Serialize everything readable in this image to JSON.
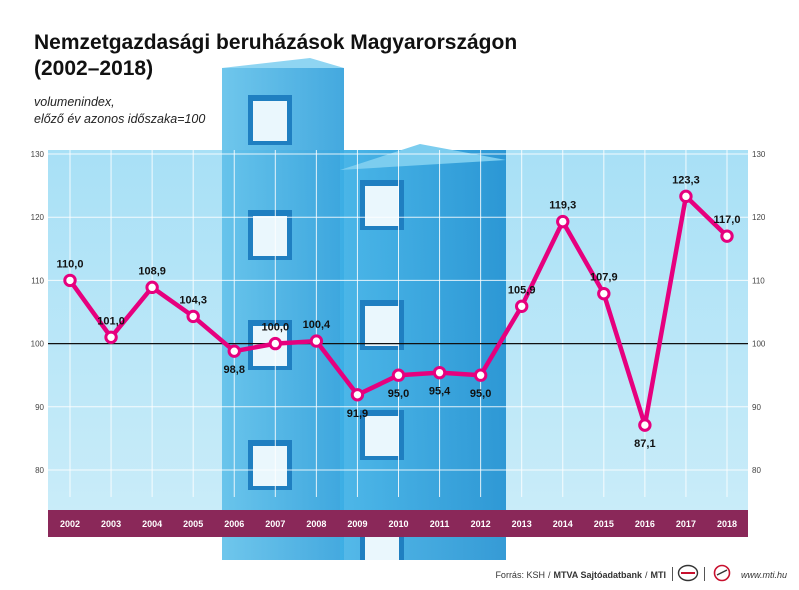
{
  "title_line1": "Nemzetgazdasági beruházások Magyarországon",
  "title_line2": "(2002–2018)",
  "subtitle_line1": "volumenindex,",
  "subtitle_line2": "előző év azonos időszaka=100",
  "footer": {
    "source_prefix": "Forrás: KSH",
    "source_agency": "MTVA Sajtóadatbank",
    "source_mti": "MTI",
    "sep": "/",
    "website": "www.mti.hu"
  },
  "chart_data": {
    "type": "line",
    "title": "Nemzetgazdasági beruházások Magyarországon (2002–2018)",
    "ylabel": "volumenindex, előző év azonos időszaka=100",
    "categories": [
      "2002",
      "2003",
      "2004",
      "2005",
      "2006",
      "2007",
      "2008",
      "2009",
      "2010",
      "2011",
      "2012",
      "2013",
      "2014",
      "2015",
      "2016",
      "2017",
      "2018"
    ],
    "values": [
      110.0,
      101.0,
      108.9,
      104.3,
      98.8,
      100.0,
      100.4,
      91.9,
      95.0,
      95.4,
      95.0,
      105.9,
      119.3,
      107.9,
      87.1,
      123.3,
      117.0
    ],
    "labels": [
      "110,0",
      "101,0",
      "108,9",
      "104,3",
      "98,8",
      "100,0",
      "100,4",
      "91,9",
      "95,0",
      "95,4",
      "95,0",
      "105,9",
      "119,3",
      "107,9",
      "87,1",
      "123,3",
      "117,0"
    ],
    "label_position": [
      "above",
      "above",
      "above",
      "above",
      "below",
      "above",
      "above",
      "below",
      "below",
      "below",
      "below",
      "above",
      "above",
      "above",
      "below",
      "above",
      "above"
    ],
    "yticks": [
      80,
      90,
      100,
      110,
      120,
      130
    ],
    "ytick_labels": [
      "80",
      "90",
      "100",
      "110",
      "120",
      "130"
    ],
    "ylim": [
      75,
      130
    ],
    "reference_line": 100,
    "grid": true,
    "colors": {
      "line": "#e6007e",
      "marker_fill": "#ffffff",
      "background": "#9fdcf4",
      "grid": "#ffffff",
      "reference": "#111111",
      "axis_band": "#8a2859",
      "axis_text": "#ffffff"
    }
  }
}
